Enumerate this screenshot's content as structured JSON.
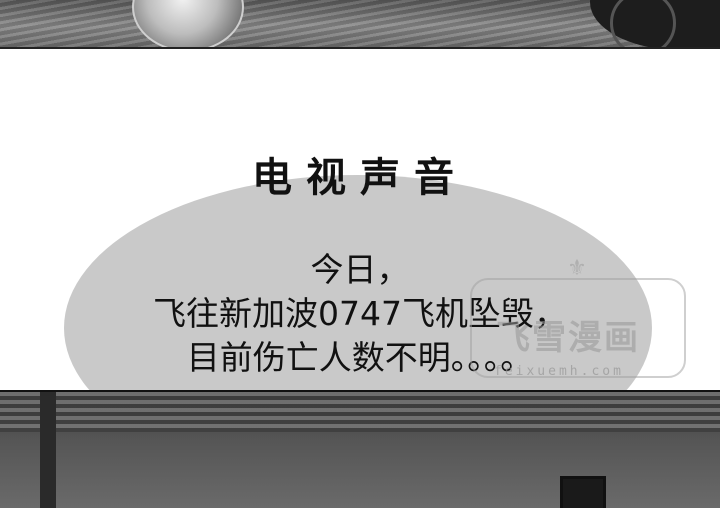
{
  "speaker_label": "电视声音",
  "dialogue": {
    "line1": "今日，",
    "line2": "飞往新加波0747飞机坠毁，",
    "line3": "目前伤亡人数不明。。。。"
  },
  "watermark": {
    "text": "飞雪漫画",
    "url": "feixuemh.com"
  },
  "colors": {
    "bubble": "#a8a8a8",
    "text": "#111111",
    "watermark": "#969696"
  }
}
